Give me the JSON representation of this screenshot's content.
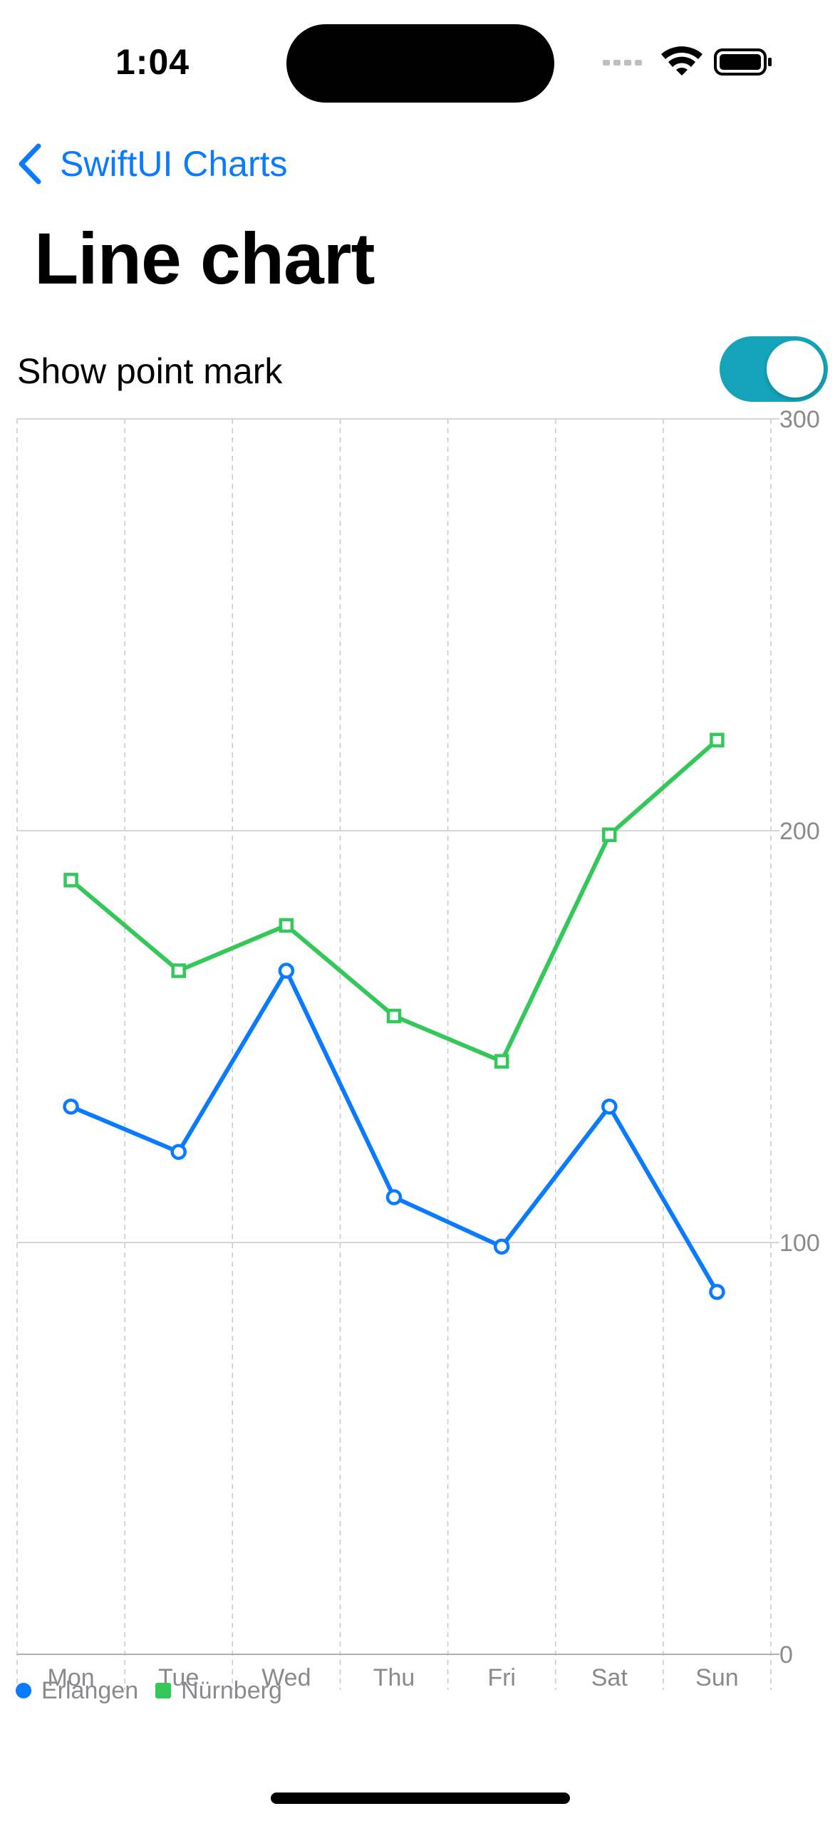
{
  "status_bar": {
    "time": "1:04"
  },
  "nav": {
    "back_label": "SwiftUI Charts",
    "back_icon": "chevron-left-icon",
    "accent_color": "#0a7aff"
  },
  "page": {
    "title": "Line chart"
  },
  "toggle": {
    "label": "Show point mark",
    "on": true,
    "color": "#14a3b8"
  },
  "chart_data": {
    "type": "line",
    "categories": [
      "Mon",
      "Tue",
      "Wed",
      "Thu",
      "Fri",
      "Sat",
      "Sun"
    ],
    "series": [
      {
        "name": "Erlangen",
        "color": "#0a7aff",
        "symbol": "circle",
        "values": [
          133,
          122,
          166,
          111,
          99,
          133,
          88
        ]
      },
      {
        "name": "Nürnberg",
        "color": "#34c759",
        "symbol": "square",
        "values": [
          188,
          166,
          177,
          155,
          144,
          199,
          222
        ]
      }
    ],
    "y_ticks": [
      "0",
      "100",
      "200",
      "300"
    ],
    "ylim": [
      0,
      300
    ],
    "y_axis_position": "right",
    "grid": true,
    "legend_position": "bottom-left"
  }
}
